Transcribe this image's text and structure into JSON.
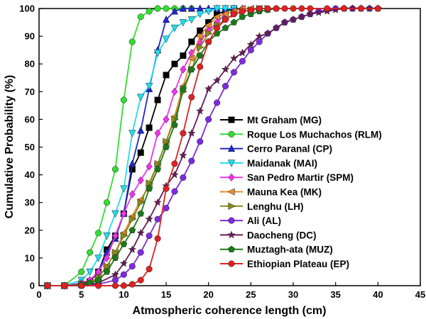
{
  "chart_data": {
    "type": "line",
    "xlabel": "Atmospheric coherence length (cm)",
    "ylabel": "Cumulative Probability (%)",
    "xlim": [
      0,
      45
    ],
    "ylim": [
      0,
      100
    ],
    "xticks": [
      0,
      5,
      10,
      15,
      20,
      25,
      30,
      35,
      40,
      45
    ],
    "yticks": [
      0,
      10,
      20,
      30,
      40,
      50,
      60,
      70,
      80,
      90,
      100
    ],
    "grid": false,
    "legend": "right",
    "series": [
      {
        "name": "Mt Graham (MG)",
        "color": "#000000",
        "marker": "square",
        "x": [
          1,
          3,
          5,
          6,
          7,
          8,
          9,
          10,
          11,
          12,
          13,
          14,
          15,
          16,
          17,
          18,
          19,
          20,
          21,
          22,
          23
        ],
        "y": [
          0,
          0,
          0.5,
          1.5,
          5,
          13,
          18,
          26,
          42,
          48,
          57,
          67,
          76,
          80,
          83,
          88,
          92,
          95,
          98,
          99,
          100
        ]
      },
      {
        "name": "Roque Los Muchachos (RLM)",
        "color": "#33dd33",
        "marker": "circle",
        "x": [
          1,
          3,
          5,
          6,
          7,
          8,
          9,
          10,
          11,
          12,
          13,
          14,
          15,
          16,
          17,
          18
        ],
        "y": [
          0,
          0,
          5,
          12,
          19,
          30,
          42,
          67,
          88,
          97,
          99,
          100,
          100,
          100,
          100,
          100
        ]
      },
      {
        "name": "Cerro Paranal (CP)",
        "color": "#1f28c8",
        "marker": "triangle-up",
        "x": [
          1,
          3,
          5,
          6,
          7,
          8,
          9,
          10,
          11,
          12,
          13,
          14,
          15,
          16,
          17,
          18,
          19,
          20,
          21,
          22,
          23
        ],
        "y": [
          0,
          0,
          1,
          2,
          5,
          12,
          17,
          26,
          44,
          56,
          71,
          85,
          96,
          99,
          100,
          100,
          100,
          100,
          100,
          100,
          100
        ]
      },
      {
        "name": "Maidanak (MAI)",
        "color": "#22ddee",
        "marker": "triangle-down",
        "x": [
          1,
          3,
          5,
          6,
          7,
          8,
          9,
          10,
          11,
          12,
          13,
          14,
          15,
          16,
          17,
          18,
          19,
          20,
          21,
          22,
          23
        ],
        "y": [
          0,
          0,
          2,
          5,
          10,
          18,
          26,
          35,
          55,
          68,
          72,
          84,
          89,
          93,
          95,
          96,
          98,
          99,
          100,
          100,
          100
        ]
      },
      {
        "name": "San Pedro Martir (SPM)",
        "color": "#ee33ee",
        "marker": "diamond",
        "x": [
          1,
          3,
          5,
          6,
          7,
          8,
          9,
          10,
          11,
          12,
          13,
          14,
          15,
          16,
          17,
          18,
          19,
          20,
          21,
          22,
          23,
          24
        ],
        "y": [
          0,
          0,
          1,
          2,
          5,
          10,
          18,
          26,
          33,
          38,
          43,
          55,
          60,
          70,
          78,
          84,
          88,
          92,
          95,
          98,
          99,
          100
        ]
      },
      {
        "name": "Mauna Kea (MK)",
        "color": "#e88a2a",
        "marker": "triangle-left",
        "x": [
          1,
          3,
          5,
          6,
          7,
          8,
          9,
          10,
          11,
          12,
          13,
          14,
          15,
          16,
          17,
          18,
          19,
          20,
          21,
          22,
          23,
          24,
          25,
          26
        ],
        "y": [
          0,
          0,
          0.5,
          1,
          3,
          7,
          12,
          19,
          25,
          31,
          36,
          44,
          52,
          61,
          72,
          82,
          90,
          94,
          97,
          98,
          99,
          100,
          100,
          100
        ]
      },
      {
        "name": "Lenghu (LH)",
        "color": "#8a8a1a",
        "marker": "triangle-right",
        "x": [
          1,
          3,
          5,
          6,
          7,
          8,
          9,
          10,
          11,
          12,
          13,
          14,
          15,
          16,
          17,
          18,
          19,
          20,
          21,
          22,
          23,
          24,
          25,
          26,
          27
        ],
        "y": [
          0,
          0,
          0.5,
          1,
          3,
          7,
          12,
          18,
          24,
          30,
          37,
          44,
          52,
          60,
          70,
          78,
          86,
          91,
          94,
          96,
          98,
          99,
          99.5,
          100,
          100
        ]
      },
      {
        "name": "Ali (AL)",
        "color": "#7d2ae0",
        "marker": "circle",
        "x": [
          1,
          3,
          5,
          7,
          9,
          10,
          11,
          12,
          13,
          14,
          15,
          16,
          17,
          18,
          19,
          20,
          21,
          22,
          23,
          24,
          25,
          26,
          27,
          28,
          29,
          30,
          31,
          32,
          33,
          34,
          35,
          36,
          37,
          38,
          39,
          40
        ],
        "y": [
          0,
          0,
          0,
          0.5,
          2,
          4,
          7,
          12,
          18,
          24,
          28,
          34,
          39,
          45,
          52,
          60,
          66,
          72,
          77,
          81,
          85,
          88,
          91,
          93,
          95,
          96,
          97,
          98,
          99,
          99.5,
          100,
          100,
          100,
          100,
          100,
          100
        ]
      },
      {
        "name": "Daocheng (DC)",
        "color": "#6b1a5a",
        "marker": "star",
        "x": [
          1,
          3,
          5,
          7,
          9,
          10,
          11,
          12,
          13,
          14,
          15,
          16,
          17,
          18,
          19,
          20,
          21,
          22,
          23,
          24,
          25,
          26,
          27,
          28,
          29,
          30,
          31,
          32,
          33,
          34,
          35,
          36,
          37,
          38,
          39,
          40
        ],
        "y": [
          0,
          0,
          0,
          1,
          4,
          8,
          13,
          19,
          24,
          30,
          36,
          40,
          47,
          55,
          63,
          71,
          74,
          78,
          82,
          84,
          87,
          90,
          91,
          93,
          95,
          96,
          97,
          98,
          98.5,
          99,
          99.5,
          100,
          100,
          100,
          100,
          100
        ]
      },
      {
        "name": "Muztagh-ata (MUZ)",
        "color": "#1a7a1a",
        "marker": "pentagon",
        "x": [
          1,
          3,
          5,
          6,
          7,
          8,
          9,
          10,
          11,
          12,
          13,
          14,
          15,
          16,
          17,
          18,
          19,
          20,
          21,
          22,
          23,
          24,
          25,
          26,
          27,
          28
        ],
        "y": [
          0,
          0,
          0.5,
          1,
          2,
          5,
          10,
          15,
          20,
          26,
          35,
          42,
          50,
          58,
          71,
          78,
          83,
          88,
          91,
          93,
          95,
          97,
          98,
          99,
          99.5,
          100
        ]
      },
      {
        "name": "Ethiopian Plateau (EP)",
        "color": "#dd2222",
        "marker": "circle",
        "x": [
          1,
          3,
          5,
          7,
          9,
          10,
          11,
          12,
          13,
          14,
          15,
          16,
          17,
          18,
          19,
          20,
          21,
          22,
          23,
          24,
          25,
          26,
          27,
          28,
          29,
          30,
          31,
          32,
          34,
          36,
          38,
          40
        ],
        "y": [
          0,
          0,
          0,
          0,
          0,
          0,
          0.5,
          2,
          6,
          17,
          35,
          44,
          55,
          68,
          79,
          88,
          93,
          96,
          98,
          99,
          99.5,
          100,
          100,
          100,
          100,
          100,
          100,
          100,
          100,
          100,
          100,
          100
        ]
      }
    ]
  }
}
